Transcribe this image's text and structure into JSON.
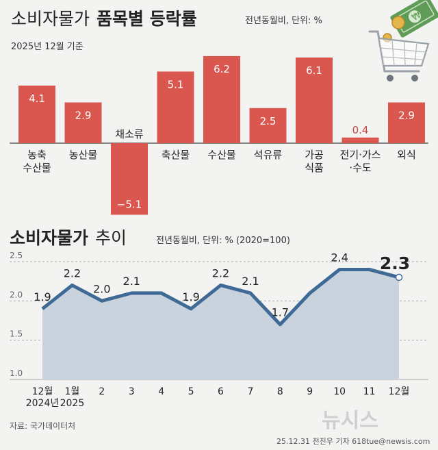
{
  "title1_plain": "소비자물가",
  "title1_bold": "품목별 등락률",
  "title1_unit": "전년동월비, 단위: %",
  "title1_basis": "2025년 12월 기준",
  "title2_plain": "소비자물가",
  "title2_bold": "추이",
  "title2_unit": "전년동월비, 단위: % (2020=100)",
  "source": "자료: 국가데이터처",
  "credit": "25.12.31  전진우 기자  618tue@newsis.com",
  "watermark": "뉴시스",
  "colors": {
    "bar": "#d9574f",
    "line": "#3f6a96",
    "area": "#c9d3de",
    "bg": "#f3f3f1"
  },
  "icons": [
    "shopping-cart-icon",
    "money-icon"
  ],
  "chart_data": [
    {
      "type": "bar",
      "title": "소비자물가 품목별 등락률",
      "categories": [
        [
          "농축",
          "수산물"
        ],
        [
          "농산물"
        ],
        [
          "채소류"
        ],
        [
          "축산물"
        ],
        [
          "수산물"
        ],
        [
          "석유류"
        ],
        [
          "가공",
          "식품"
        ],
        [
          "전기·가스",
          "·수도"
        ],
        [
          "외식"
        ]
      ],
      "values": [
        4.1,
        2.9,
        -5.1,
        5.1,
        6.2,
        2.5,
        6.1,
        0.4,
        2.9
      ],
      "value_labels": [
        "4.1",
        "2.9",
        "−5.1",
        "5.1",
        "6.2",
        "2.5",
        "6.1",
        "0.4",
        "2.9"
      ],
      "ylim": [
        -5.5,
        6.2
      ],
      "grid": false,
      "legend": "none"
    },
    {
      "type": "area",
      "title": "소비자물가 추이",
      "x": [
        [
          "12월",
          "2024년"
        ],
        [
          "1월",
          "2025"
        ],
        [
          "2"
        ],
        [
          "3"
        ],
        [
          "4"
        ],
        [
          "5"
        ],
        [
          "6"
        ],
        [
          "7"
        ],
        [
          "8"
        ],
        [
          "9"
        ],
        [
          "10"
        ],
        [
          "11"
        ],
        [
          "12월"
        ]
      ],
      "values": [
        1.9,
        2.2,
        2.0,
        2.1,
        2.1,
        1.9,
        2.2,
        2.1,
        1.7,
        2.1,
        2.4,
        2.4,
        2.3
      ],
      "value_labels": [
        "1.9",
        "2.2",
        "2.0",
        "2.1",
        "",
        "1.9",
        "2.2",
        "2.1",
        "1.7",
        "",
        "2.4",
        "",
        "2.3"
      ],
      "yticks": [
        "1.0",
        "1.5",
        "2.0",
        "2.5"
      ],
      "ylim": [
        1.0,
        2.5
      ],
      "grid": true,
      "legend": "none"
    }
  ]
}
